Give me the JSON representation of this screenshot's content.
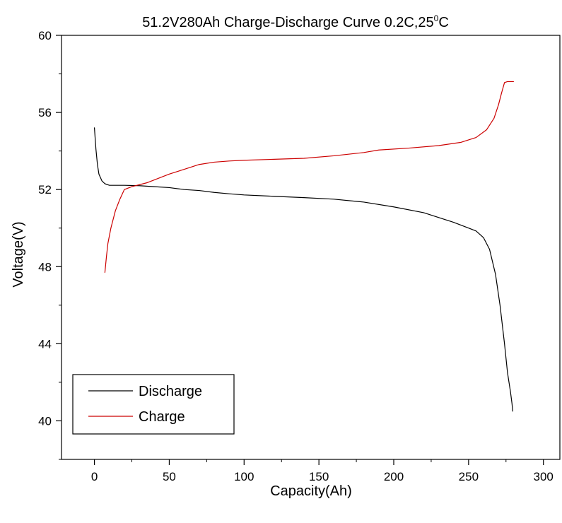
{
  "chart_data": {
    "type": "line",
    "title": "51.2V280Ah Charge-Discharge Curve  0.2C,25",
    "title_superscript": "0",
    "title_suffix": "C",
    "xlabel": "Capacity(Ah)",
    "ylabel": "Voltage(V)",
    "xlim": [
      -22,
      311
    ],
    "ylim": [
      38,
      60
    ],
    "x_ticks": [
      0,
      50,
      100,
      150,
      200,
      250,
      300
    ],
    "y_ticks": [
      40,
      44,
      48,
      52,
      56,
      60
    ],
    "grid": false,
    "legend_position": "bottom-left",
    "series": [
      {
        "name": "Discharge",
        "color": "#000000",
        "points": [
          [
            0,
            55.2
          ],
          [
            1,
            54.1
          ],
          [
            2,
            53.3
          ],
          [
            3,
            52.8
          ],
          [
            5,
            52.45
          ],
          [
            7,
            52.3
          ],
          [
            10,
            52.22
          ],
          [
            20,
            52.22
          ],
          [
            30,
            52.2
          ],
          [
            40,
            52.15
          ],
          [
            50,
            52.1
          ],
          [
            60,
            52.0
          ],
          [
            70,
            51.95
          ],
          [
            80,
            51.85
          ],
          [
            90,
            51.78
          ],
          [
            100,
            51.72
          ],
          [
            120,
            51.65
          ],
          [
            140,
            51.58
          ],
          [
            160,
            51.5
          ],
          [
            180,
            51.35
          ],
          [
            200,
            51.1
          ],
          [
            220,
            50.8
          ],
          [
            240,
            50.3
          ],
          [
            250,
            50.0
          ],
          [
            255,
            49.85
          ],
          [
            260,
            49.5
          ],
          [
            264,
            48.9
          ],
          [
            268,
            47.6
          ],
          [
            271,
            46.0
          ],
          [
            274,
            44.0
          ],
          [
            276,
            42.5
          ],
          [
            278,
            41.5
          ],
          [
            279,
            40.9
          ],
          [
            279.5,
            40.5
          ]
        ]
      },
      {
        "name": "Charge",
        "color": "#cc0000",
        "points": [
          [
            7,
            47.7
          ],
          [
            8,
            48.5
          ],
          [
            9,
            49.2
          ],
          [
            11,
            50.0
          ],
          [
            14,
            50.9
          ],
          [
            17,
            51.5
          ],
          [
            20,
            52.0
          ],
          [
            25,
            52.15
          ],
          [
            30,
            52.25
          ],
          [
            35,
            52.35
          ],
          [
            40,
            52.5
          ],
          [
            50,
            52.8
          ],
          [
            60,
            53.05
          ],
          [
            70,
            53.3
          ],
          [
            80,
            53.42
          ],
          [
            90,
            53.48
          ],
          [
            100,
            53.52
          ],
          [
            120,
            53.57
          ],
          [
            140,
            53.62
          ],
          [
            160,
            53.75
          ],
          [
            180,
            53.92
          ],
          [
            190,
            54.05
          ],
          [
            210,
            54.15
          ],
          [
            230,
            54.28
          ],
          [
            245,
            54.45
          ],
          [
            255,
            54.7
          ],
          [
            262,
            55.1
          ],
          [
            267,
            55.7
          ],
          [
            270,
            56.4
          ],
          [
            272,
            57.0
          ],
          [
            274,
            57.55
          ],
          [
            276,
            57.6
          ],
          [
            280,
            57.6
          ]
        ]
      }
    ]
  }
}
